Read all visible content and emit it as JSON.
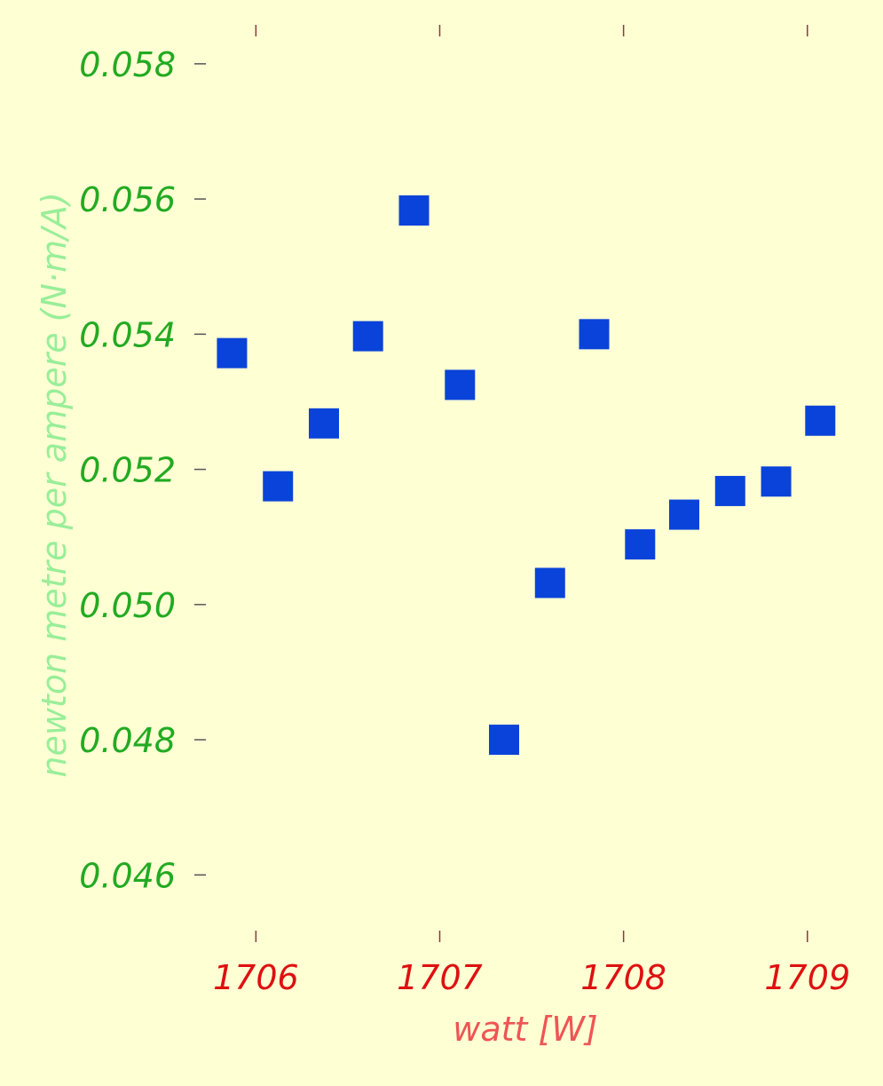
{
  "chart_data": {
    "type": "scatter",
    "xlabel": "watt [W]",
    "ylabel": "newton metre per ampere (N·m/A)",
    "xlim": [
      1705.67,
      1709.17
    ],
    "ylim": [
      0.04515,
      0.05855
    ],
    "x_ticks": [
      1706,
      1707,
      1708,
      1709
    ],
    "x_tick_labels": [
      "1706",
      "1707",
      "1708",
      "1709"
    ],
    "y_ticks": [
      0.046,
      0.048,
      0.05,
      0.052,
      0.054,
      0.056,
      0.058
    ],
    "y_tick_labels": [
      "0.046",
      "0.048",
      "0.050",
      "0.052",
      "0.054",
      "0.056",
      "0.058"
    ],
    "grid": false,
    "marker": "square",
    "series": [
      {
        "x": [
          1705.87,
          1706.12,
          1706.37,
          1706.61,
          1706.86,
          1707.11,
          1707.35,
          1707.6,
          1707.84,
          1708.09,
          1708.33,
          1708.58,
          1708.83,
          1709.07
        ],
        "y": [
          0.05372,
          0.05175,
          0.05268,
          0.05397,
          0.05583,
          0.05325,
          0.048,
          0.05032,
          0.054,
          0.05089,
          0.05133,
          0.05168,
          0.05182,
          0.05272
        ]
      }
    ],
    "colors": {
      "background": "#ffffd4",
      "marker": "#0a43d9",
      "y_tick_label": "#22aa22",
      "x_tick_label": "#dd1111",
      "y_axis_title": "#99ee99",
      "x_axis_title": "#ee5555",
      "y_tick_mark": "#555555",
      "x_tick_mark": "#8b3a3a"
    }
  }
}
